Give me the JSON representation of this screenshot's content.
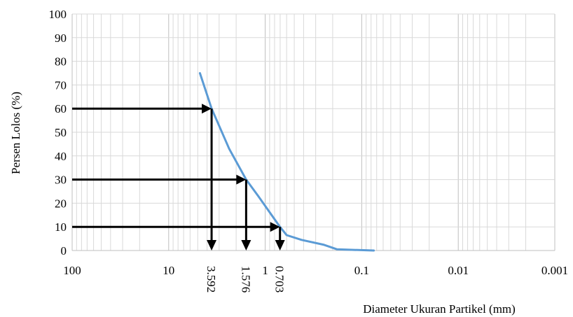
{
  "chart_data": {
    "type": "line",
    "title": "",
    "xlabel": "Diameter Ukuran Partikel (mm)",
    "ylabel": "Persen Lolos (%)",
    "x_scale": "log",
    "x_reversed": true,
    "xlim": [
      100,
      0.001
    ],
    "ylim": [
      0,
      100
    ],
    "x_ticks": [
      100,
      10,
      1,
      0.1,
      0.01,
      0.001
    ],
    "x_tick_labels": [
      "100",
      "10",
      "1",
      "0.1",
      "0.01",
      "0.001"
    ],
    "y_ticks": [
      0,
      10,
      20,
      30,
      40,
      50,
      60,
      70,
      80,
      90,
      100
    ],
    "y_tick_labels": [
      "0",
      "10",
      "20",
      "30",
      "40",
      "50",
      "60",
      "70",
      "80",
      "90",
      "100"
    ],
    "grid": true,
    "legend": "none",
    "series": [
      {
        "color": "#5B9BD5",
        "x": [
          4.75,
          3.592,
          2.36,
          1.576,
          1.18,
          0.703,
          0.6,
          0.42,
          0.25,
          0.18,
          0.075
        ],
        "y": [
          75,
          60,
          43,
          30,
          23,
          10,
          6.5,
          4.5,
          2.5,
          0.5,
          0
        ]
      }
    ],
    "annotations": [
      {
        "x": 3.592,
        "y": 60,
        "label": "3.592"
      },
      {
        "x": 1.576,
        "y": 30,
        "label": "1.576"
      },
      {
        "x": 0.703,
        "y": 10,
        "label": "0.703"
      }
    ],
    "annotation_color": "#000000",
    "grid_color": "#D9D9D9",
    "axis_color": "#BFBFBF"
  }
}
